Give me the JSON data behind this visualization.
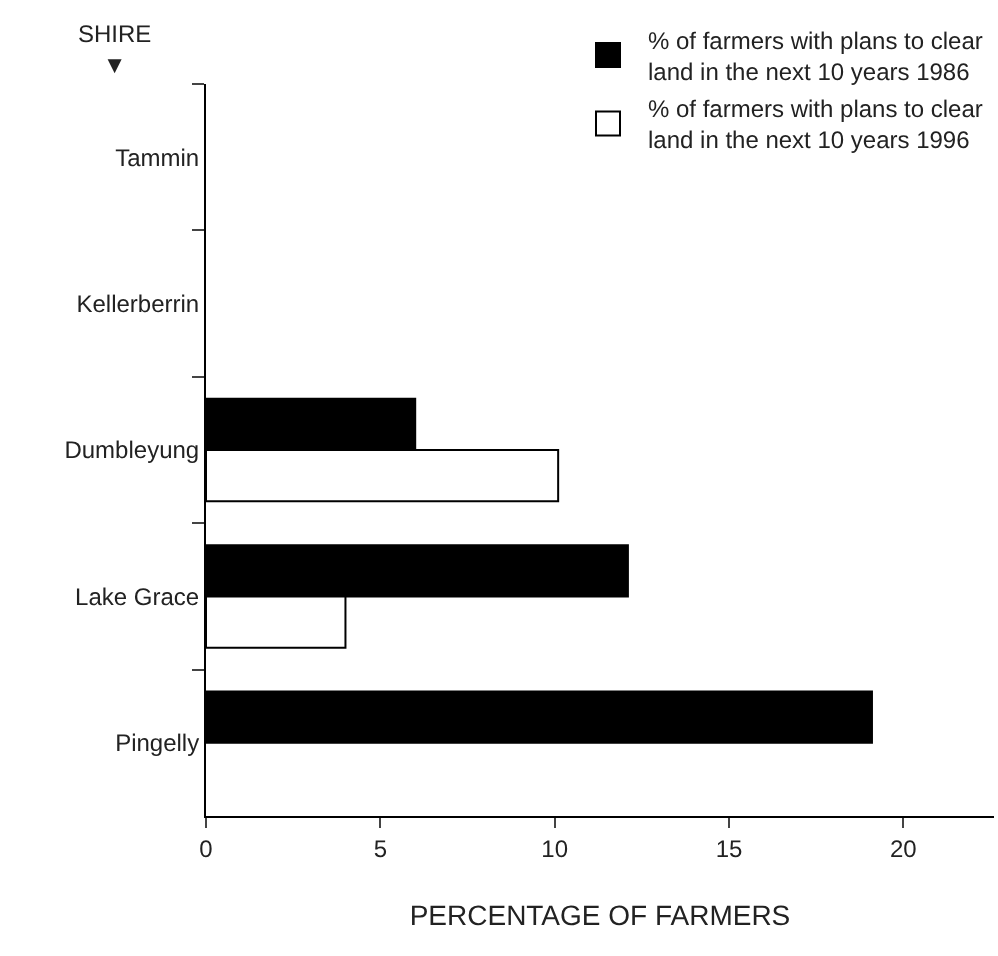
{
  "chart_data": {
    "type": "bar",
    "orientation": "horizontal",
    "ylabel": "SHIRE ▼",
    "xlabel": "PERCENTAGE OF FARMERS",
    "categories": [
      "Tammin",
      "Kellerberrin",
      "Dumbleyung",
      "Lake Grace",
      "Pingelly"
    ],
    "series": [
      {
        "name": "% of farmers with plans to clear\nland in the next 10 years 1986",
        "color": "#000000",
        "values": [
          null,
          null,
          6.0,
          12.1,
          19.1
        ]
      },
      {
        "name": "% of farmers with plans to clear\nland in the next 10 years 1996",
        "color": "#ffffff",
        "values": [
          null,
          null,
          10.1,
          4.0,
          null
        ]
      }
    ],
    "xlim": [
      0,
      22.6
    ],
    "xticks": [
      0,
      5,
      10,
      15,
      20
    ],
    "legend": "top right"
  }
}
